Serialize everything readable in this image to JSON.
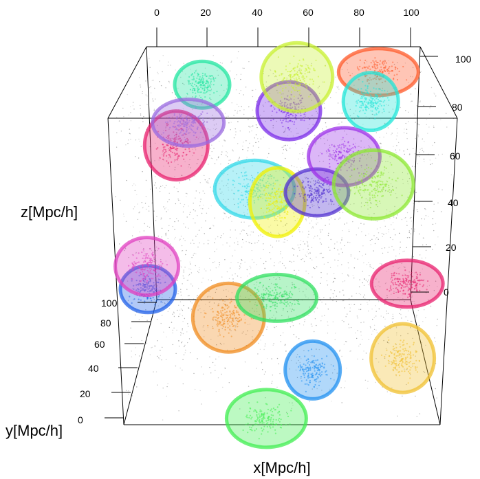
{
  "chart_data": {
    "type": "scatter",
    "projection": "3d",
    "title": "",
    "xlabel": "x[Mpc/h]",
    "ylabel": "y[Mpc/h]",
    "zlabel": "z[Mpc/h]",
    "xlim": [
      0,
      100
    ],
    "ylim": [
      0,
      100
    ],
    "zlim": [
      0,
      100
    ],
    "x_ticks": [
      "0",
      "20",
      "40",
      "60",
      "80",
      "100"
    ],
    "y_ticks": [
      "0",
      "20",
      "40",
      "60",
      "80",
      "100"
    ],
    "z_ticks": [
      "0",
      "20",
      "40",
      "60",
      "80",
      "100"
    ],
    "background_particles": {
      "color": "#000000",
      "description_visible": false
    },
    "series": [
      {
        "color": "#22e6a0",
        "x": 20,
        "y": 100,
        "z": 85
      },
      {
        "color": "#7a2be8",
        "x": 52,
        "y": 90,
        "z": 78
      },
      {
        "color": "#c8f030",
        "x": 55,
        "y": 100,
        "z": 88
      },
      {
        "color": "#ff5a2a",
        "x": 85,
        "y": 100,
        "z": 90
      },
      {
        "color": "#20e6d8",
        "x": 82,
        "y": 95,
        "z": 80
      },
      {
        "color": "#e8206e",
        "x": 12,
        "y": 80,
        "z": 68
      },
      {
        "color": "#9a6ae0",
        "x": 16,
        "y": 85,
        "z": 75
      },
      {
        "color": "#30d8e8",
        "x": 40,
        "y": 70,
        "z": 55
      },
      {
        "color": "#f0f000",
        "x": 48,
        "y": 65,
        "z": 52
      },
      {
        "color": "#5030d0",
        "x": 62,
        "y": 75,
        "z": 52
      },
      {
        "color": "#9c30e8",
        "x": 72,
        "y": 85,
        "z": 62
      },
      {
        "color": "#8ce830",
        "x": 82,
        "y": 75,
        "z": 55
      },
      {
        "color": "#2060e8",
        "x": 5,
        "y": 40,
        "z": 30
      },
      {
        "color": "#e040c0",
        "x": 5,
        "y": 40,
        "z": 38
      },
      {
        "color": "#f08c20",
        "x": 32,
        "y": 35,
        "z": 22
      },
      {
        "color": "#30e060",
        "x": 48,
        "y": 45,
        "z": 25
      },
      {
        "color": "#2090f0",
        "x": 60,
        "y": 25,
        "z": 8
      },
      {
        "color": "#f0c030",
        "x": 90,
        "y": 30,
        "z": 10
      },
      {
        "color": "#e8206e",
        "x": 92,
        "y": 45,
        "z": 30
      },
      {
        "color": "#40ee50",
        "x": 45,
        "y": 5,
        "z": 0
      }
    ]
  }
}
